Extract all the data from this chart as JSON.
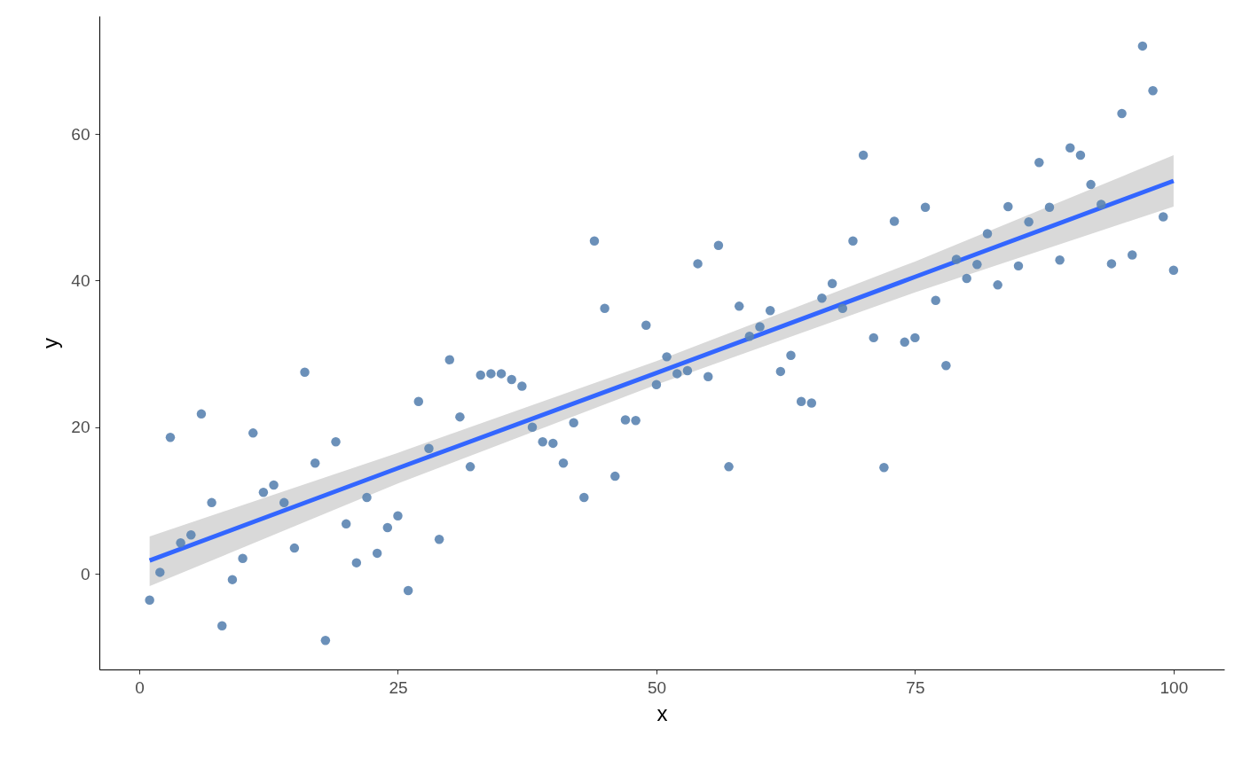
{
  "chart_data": {
    "type": "scatter",
    "xlabel": "x",
    "ylabel": "y",
    "xlim": [
      -3.86,
      104.9
    ],
    "ylim": [
      -13.06,
      76.1
    ],
    "xticks": [
      0,
      25,
      50,
      75,
      100
    ],
    "yticks": [
      0,
      20,
      40,
      60
    ],
    "grid": false,
    "series": [
      {
        "marker": "circle",
        "color": "#5b84b1",
        "x": [
          1,
          2,
          3,
          4,
          5,
          6,
          7,
          8,
          9,
          10,
          11,
          12,
          13,
          14,
          15,
          16,
          17,
          18,
          19,
          20,
          21,
          22,
          23,
          24,
          25,
          26,
          27,
          28,
          29,
          30,
          31,
          32,
          33,
          34,
          35,
          36,
          37,
          38,
          39,
          40,
          41,
          42,
          43,
          44,
          45,
          46,
          47,
          48,
          49,
          50,
          51,
          52,
          53,
          54,
          55,
          56,
          57,
          58,
          59,
          60,
          61,
          62,
          63,
          64,
          65,
          66,
          67,
          68,
          69,
          70,
          71,
          72,
          73,
          74,
          75,
          76,
          77,
          78,
          79,
          80,
          81,
          82,
          83,
          84,
          85,
          86,
          87,
          88,
          89,
          90,
          91,
          92,
          93,
          94,
          95,
          96,
          97,
          98,
          99,
          100
        ],
        "values": [
          -3.6,
          0.2,
          18.6,
          4.2,
          5.3,
          21.8,
          9.7,
          -7.1,
          -0.8,
          2.1,
          19.2,
          11.1,
          12.1,
          9.7,
          3.5,
          27.5,
          15.1,
          -9.1,
          18.0,
          6.8,
          1.5,
          10.4,
          2.8,
          6.3,
          7.9,
          -2.3,
          23.5,
          17.1,
          4.7,
          29.2,
          21.4,
          14.6,
          27.1,
          27.3,
          27.3,
          26.5,
          25.6,
          20.0,
          18.0,
          17.8,
          15.1,
          20.6,
          10.4,
          45.4,
          36.2,
          13.3,
          21.0,
          20.9,
          33.9,
          25.8,
          29.6,
          27.3,
          27.7,
          42.3,
          26.9,
          44.8,
          14.6,
          36.5,
          32.4,
          33.7,
          35.9,
          27.6,
          29.8,
          23.5,
          23.3,
          37.6,
          39.6,
          36.2,
          45.4,
          57.1,
          32.2,
          14.5,
          48.1,
          31.6,
          32.2,
          50.0,
          37.3,
          28.4,
          42.9,
          40.3,
          42.2,
          46.4,
          39.4,
          50.1,
          42.0,
          48.0,
          56.1,
          50.0,
          42.8,
          58.1,
          57.1,
          53.1,
          50.4,
          42.3,
          62.8,
          43.5,
          72.0,
          65.9,
          48.7,
          41.4
        ]
      },
      {
        "type": "line",
        "color": "#3366ff",
        "x": [
          1,
          25,
          50,
          75,
          100
        ],
        "values": [
          1.8,
          14.4,
          27.4,
          40.5,
          53.6
        ],
        "lower": [
          -1.7,
          12.3,
          25.8,
          38.4,
          50.1
        ],
        "upper": [
          5.1,
          16.5,
          29.0,
          42.6,
          57.1
        ]
      }
    ]
  }
}
